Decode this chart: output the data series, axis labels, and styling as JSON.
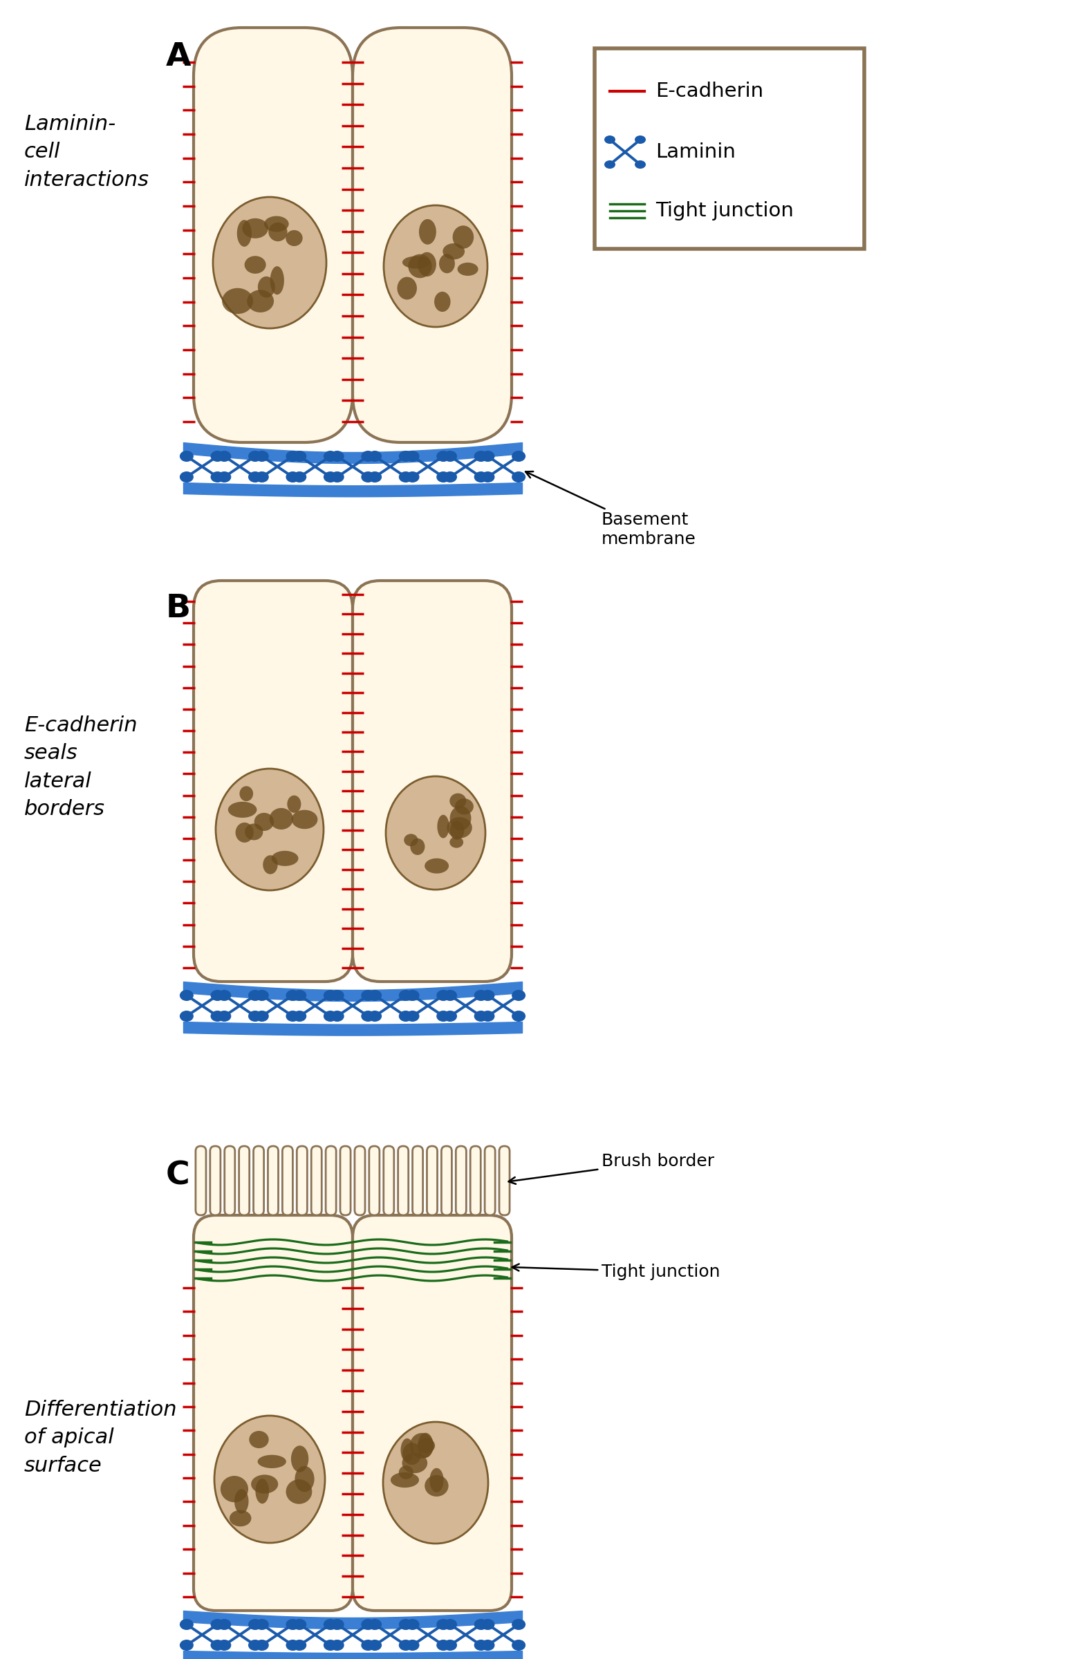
{
  "cell_fill": "#FFF8E7",
  "cell_outline": "#8B7355",
  "nucleus_fill_light": "#D4B896",
  "nucleus_fill": "#B8935A",
  "nucleus_outline": "#7A5C2E",
  "chromatin_color": "#6B4C1E",
  "ecadherin_color": "#CC0000",
  "laminin_color": "#1A5AAB",
  "tight_junction_color": "#1A6B1A",
  "basement_fill": "#3A7FD4",
  "background": "#FFFFFF",
  "label_A": "A",
  "label_B": "B",
  "label_C": "C",
  "left_label_A": "Laminin-\ncell\ninteractions",
  "left_label_B": "E-cadherin\nseals\nlateral\nborders",
  "left_label_C": "Differentiation\nof apical\nsurface",
  "annot_basement": "Basement\nmembrane",
  "annot_brush": "Brush border",
  "annot_tight": "Tight junction"
}
